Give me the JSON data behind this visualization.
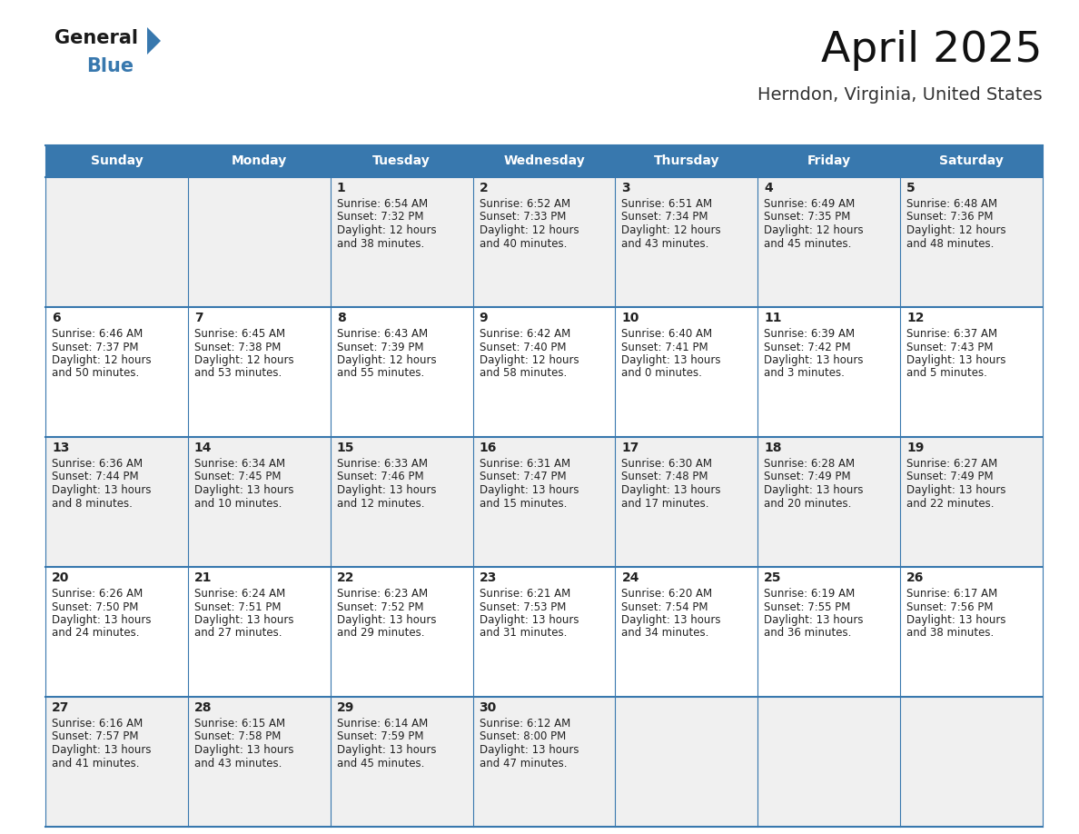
{
  "title": "April 2025",
  "subtitle": "Herndon, Virginia, United States",
  "header_color": "#3878ae",
  "header_text_color": "#ffffff",
  "row_bg_even": "#f0f0f0",
  "row_bg_odd": "#ffffff",
  "border_color": "#3878ae",
  "text_color": "#222222",
  "day_headers": [
    "Sunday",
    "Monday",
    "Tuesday",
    "Wednesday",
    "Thursday",
    "Friday",
    "Saturday"
  ],
  "days": [
    {
      "day": 1,
      "col": 2,
      "row": 0,
      "sunrise": "6:54 AM",
      "sunset": "7:32 PM",
      "daylight_h": "12 hours",
      "daylight_m": "and 38 minutes."
    },
    {
      "day": 2,
      "col": 3,
      "row": 0,
      "sunrise": "6:52 AM",
      "sunset": "7:33 PM",
      "daylight_h": "12 hours",
      "daylight_m": "and 40 minutes."
    },
    {
      "day": 3,
      "col": 4,
      "row": 0,
      "sunrise": "6:51 AM",
      "sunset": "7:34 PM",
      "daylight_h": "12 hours",
      "daylight_m": "and 43 minutes."
    },
    {
      "day": 4,
      "col": 5,
      "row": 0,
      "sunrise": "6:49 AM",
      "sunset": "7:35 PM",
      "daylight_h": "12 hours",
      "daylight_m": "and 45 minutes."
    },
    {
      "day": 5,
      "col": 6,
      "row": 0,
      "sunrise": "6:48 AM",
      "sunset": "7:36 PM",
      "daylight_h": "12 hours",
      "daylight_m": "and 48 minutes."
    },
    {
      "day": 6,
      "col": 0,
      "row": 1,
      "sunrise": "6:46 AM",
      "sunset": "7:37 PM",
      "daylight_h": "12 hours",
      "daylight_m": "and 50 minutes."
    },
    {
      "day": 7,
      "col": 1,
      "row": 1,
      "sunrise": "6:45 AM",
      "sunset": "7:38 PM",
      "daylight_h": "12 hours",
      "daylight_m": "and 53 minutes."
    },
    {
      "day": 8,
      "col": 2,
      "row": 1,
      "sunrise": "6:43 AM",
      "sunset": "7:39 PM",
      "daylight_h": "12 hours",
      "daylight_m": "and 55 minutes."
    },
    {
      "day": 9,
      "col": 3,
      "row": 1,
      "sunrise": "6:42 AM",
      "sunset": "7:40 PM",
      "daylight_h": "12 hours",
      "daylight_m": "and 58 minutes."
    },
    {
      "day": 10,
      "col": 4,
      "row": 1,
      "sunrise": "6:40 AM",
      "sunset": "7:41 PM",
      "daylight_h": "13 hours",
      "daylight_m": "and 0 minutes."
    },
    {
      "day": 11,
      "col": 5,
      "row": 1,
      "sunrise": "6:39 AM",
      "sunset": "7:42 PM",
      "daylight_h": "13 hours",
      "daylight_m": "and 3 minutes."
    },
    {
      "day": 12,
      "col": 6,
      "row": 1,
      "sunrise": "6:37 AM",
      "sunset": "7:43 PM",
      "daylight_h": "13 hours",
      "daylight_m": "and 5 minutes."
    },
    {
      "day": 13,
      "col": 0,
      "row": 2,
      "sunrise": "6:36 AM",
      "sunset": "7:44 PM",
      "daylight_h": "13 hours",
      "daylight_m": "and 8 minutes."
    },
    {
      "day": 14,
      "col": 1,
      "row": 2,
      "sunrise": "6:34 AM",
      "sunset": "7:45 PM",
      "daylight_h": "13 hours",
      "daylight_m": "and 10 minutes."
    },
    {
      "day": 15,
      "col": 2,
      "row": 2,
      "sunrise": "6:33 AM",
      "sunset": "7:46 PM",
      "daylight_h": "13 hours",
      "daylight_m": "and 12 minutes."
    },
    {
      "day": 16,
      "col": 3,
      "row": 2,
      "sunrise": "6:31 AM",
      "sunset": "7:47 PM",
      "daylight_h": "13 hours",
      "daylight_m": "and 15 minutes."
    },
    {
      "day": 17,
      "col": 4,
      "row": 2,
      "sunrise": "6:30 AM",
      "sunset": "7:48 PM",
      "daylight_h": "13 hours",
      "daylight_m": "and 17 minutes."
    },
    {
      "day": 18,
      "col": 5,
      "row": 2,
      "sunrise": "6:28 AM",
      "sunset": "7:49 PM",
      "daylight_h": "13 hours",
      "daylight_m": "and 20 minutes."
    },
    {
      "day": 19,
      "col": 6,
      "row": 2,
      "sunrise": "6:27 AM",
      "sunset": "7:49 PM",
      "daylight_h": "13 hours",
      "daylight_m": "and 22 minutes."
    },
    {
      "day": 20,
      "col": 0,
      "row": 3,
      "sunrise": "6:26 AM",
      "sunset": "7:50 PM",
      "daylight_h": "13 hours",
      "daylight_m": "and 24 minutes."
    },
    {
      "day": 21,
      "col": 1,
      "row": 3,
      "sunrise": "6:24 AM",
      "sunset": "7:51 PM",
      "daylight_h": "13 hours",
      "daylight_m": "and 27 minutes."
    },
    {
      "day": 22,
      "col": 2,
      "row": 3,
      "sunrise": "6:23 AM",
      "sunset": "7:52 PM",
      "daylight_h": "13 hours",
      "daylight_m": "and 29 minutes."
    },
    {
      "day": 23,
      "col": 3,
      "row": 3,
      "sunrise": "6:21 AM",
      "sunset": "7:53 PM",
      "daylight_h": "13 hours",
      "daylight_m": "and 31 minutes."
    },
    {
      "day": 24,
      "col": 4,
      "row": 3,
      "sunrise": "6:20 AM",
      "sunset": "7:54 PM",
      "daylight_h": "13 hours",
      "daylight_m": "and 34 minutes."
    },
    {
      "day": 25,
      "col": 5,
      "row": 3,
      "sunrise": "6:19 AM",
      "sunset": "7:55 PM",
      "daylight_h": "13 hours",
      "daylight_m": "and 36 minutes."
    },
    {
      "day": 26,
      "col": 6,
      "row": 3,
      "sunrise": "6:17 AM",
      "sunset": "7:56 PM",
      "daylight_h": "13 hours",
      "daylight_m": "and 38 minutes."
    },
    {
      "day": 27,
      "col": 0,
      "row": 4,
      "sunrise": "6:16 AM",
      "sunset": "7:57 PM",
      "daylight_h": "13 hours",
      "daylight_m": "and 41 minutes."
    },
    {
      "day": 28,
      "col": 1,
      "row": 4,
      "sunrise": "6:15 AM",
      "sunset": "7:58 PM",
      "daylight_h": "13 hours",
      "daylight_m": "and 43 minutes."
    },
    {
      "day": 29,
      "col": 2,
      "row": 4,
      "sunrise": "6:14 AM",
      "sunset": "7:59 PM",
      "daylight_h": "13 hours",
      "daylight_m": "and 45 minutes."
    },
    {
      "day": 30,
      "col": 3,
      "row": 4,
      "sunrise": "6:12 AM",
      "sunset": "8:00 PM",
      "daylight_h": "13 hours",
      "daylight_m": "and 47 minutes."
    }
  ],
  "num_rows": 5,
  "num_cols": 7
}
